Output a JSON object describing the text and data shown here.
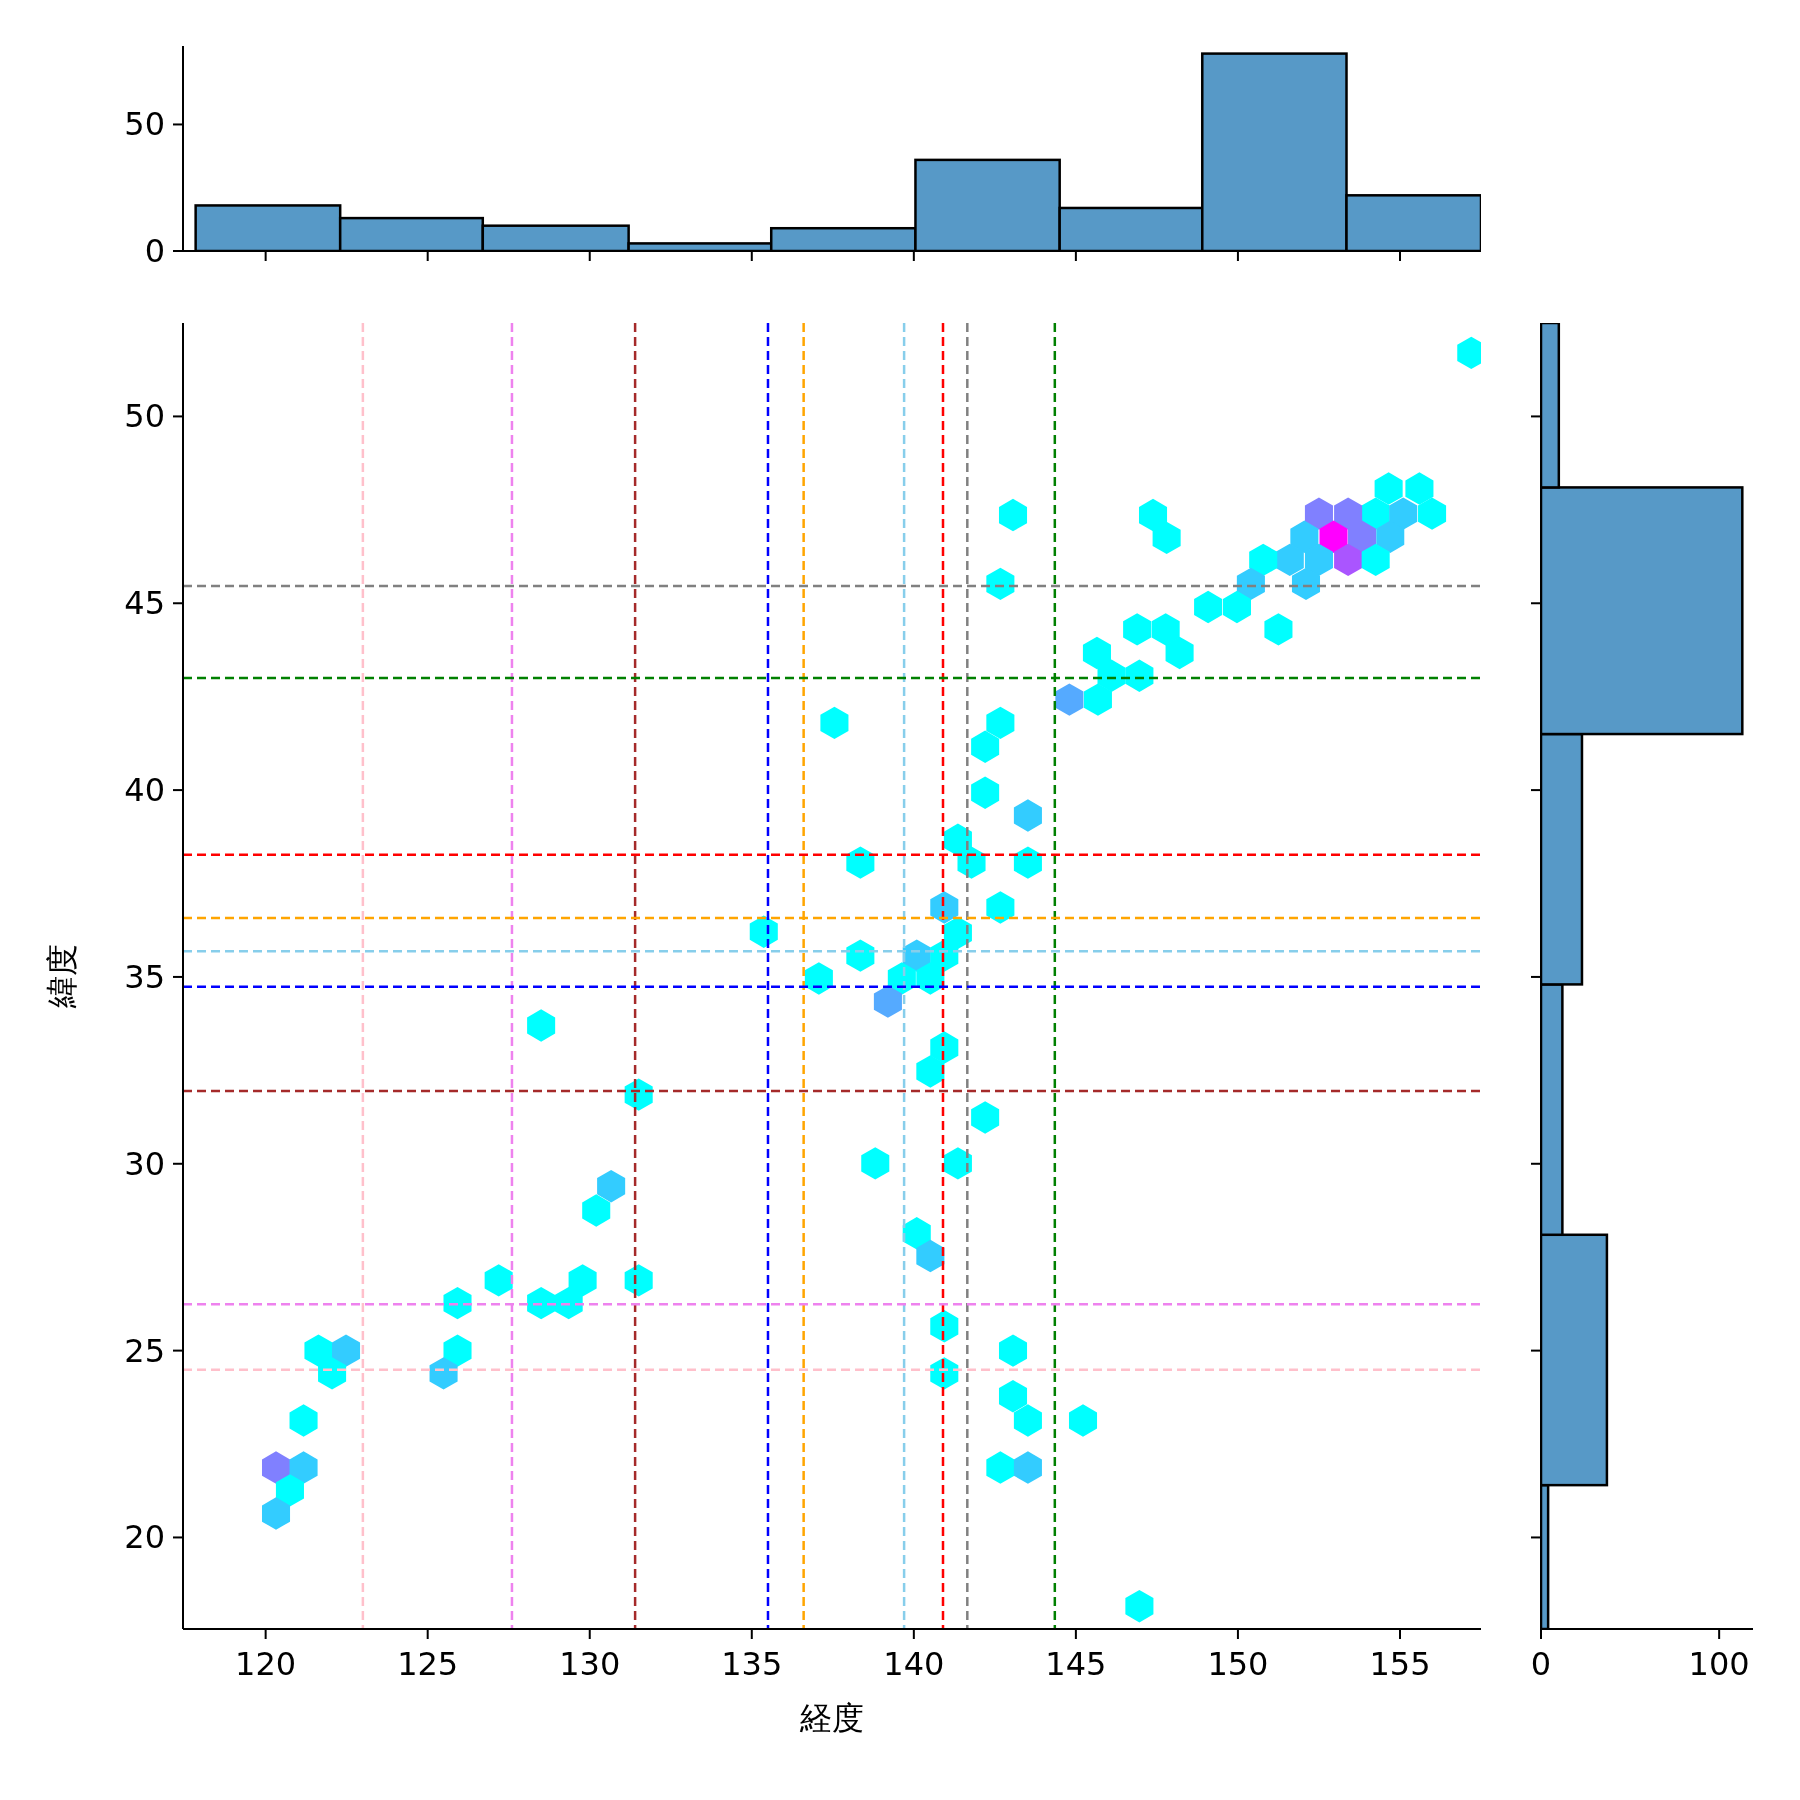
{
  "chart_data": [
    {
      "type": "histogram",
      "bins": [
        117.84,
        122.3,
        126.7,
        131.2,
        135.6,
        140.05,
        144.5,
        148.9,
        153.35,
        157.5
      ],
      "values": [
        18,
        13,
        10,
        3,
        9,
        36,
        17,
        78,
        22
      ],
      "color": "#5799c7",
      "xlim": [
        117.45,
        157.5
      ],
      "xticks": [
        120,
        125,
        130,
        135,
        140,
        145,
        150,
        155
      ],
      "ylim": [
        0,
        81
      ],
      "yticks": [
        0,
        50
      ],
      "tick_labels": "y"
    },
    {
      "type": "scatter",
      "xlabel": "経度",
      "ylabel": "緯度",
      "xlim": [
        117.45,
        157.5
      ],
      "ylim": [
        17.55,
        52.5
      ],
      "xticks": [
        120,
        125,
        130,
        135,
        140,
        145,
        150,
        155
      ],
      "yticks": [
        20,
        25,
        30,
        35,
        40,
        45,
        50
      ],
      "x": [
        157.2,
        154.65,
        155.6,
        155.99,
        154.25,
        155.1,
        152.5,
        153.4,
        152.05,
        152.95,
        153.83,
        154.7,
        151.6,
        152.5,
        153.4,
        154.25,
        150.78,
        150.4,
        152.1,
        149.08,
        149.97,
        151.25,
        146.89,
        147.77,
        148.2,
        145.65,
        146.1,
        146.96,
        144.8,
        145.68,
        147.38,
        147.8,
        143.06,
        142.67,
        142.67,
        142.2,
        142.2,
        143.52,
        137.55,
        141.36,
        141.78,
        143.52,
        138.35,
        142.67,
        140.94,
        141.36,
        135.37,
        138.35,
        140.09,
        140.94,
        140.51,
        139.63,
        137.07,
        139.2,
        140.94,
        140.51,
        131.51,
        142.2,
        128.5,
        138.81,
        141.36,
        130.66,
        130.2,
        140.09,
        140.51,
        127.19,
        129.78,
        131.51,
        125.92,
        128.5,
        129.35,
        125.92,
        125.49,
        121.63,
        122.48,
        122.05,
        140.94,
        143.06,
        140.94,
        121.17,
        143.06,
        143.52,
        145.22,
        120.32,
        121.17,
        142.67,
        143.52,
        120.75,
        120.32,
        146.96
      ],
      "values": [
        51.7,
        48.07,
        48.07,
        47.4,
        47.4,
        47.4,
        47.4,
        47.4,
        46.78,
        46.78,
        46.78,
        46.78,
        46.16,
        46.16,
        46.16,
        46.16,
        46.16,
        45.52,
        45.52,
        44.9,
        44.9,
        44.3,
        44.3,
        44.3,
        43.67,
        43.67,
        43.06,
        43.06,
        42.42,
        42.42,
        47.36,
        46.75,
        47.36,
        45.52,
        41.8,
        41.16,
        39.93,
        39.32,
        41.8,
        38.67,
        38.06,
        38.06,
        38.06,
        36.86,
        36.86,
        36.18,
        36.21,
        35.57,
        35.57,
        35.57,
        34.96,
        34.96,
        34.96,
        34.34,
        33.11,
        32.47,
        31.85,
        31.24,
        33.7,
        30.01,
        30.01,
        29.4,
        28.75,
        28.14,
        27.53,
        26.88,
        26.88,
        26.88,
        26.27,
        26.27,
        26.27,
        25.0,
        24.39,
        25.0,
        25.0,
        24.39,
        25.65,
        25.0,
        24.39,
        23.13,
        23.78,
        23.13,
        23.13,
        21.87,
        21.87,
        21.87,
        21.87,
        21.26,
        20.64,
        18.16
      ],
      "colors": [
        "#00ffff",
        "#00ffff",
        "#00ffff",
        "#00ffff",
        "#00ffff",
        "#33ccff",
        "#8080ff",
        "#8080ff",
        "#33ccff",
        "#ff00ff",
        "#8080ff",
        "#33ccff",
        "#33ccff",
        "#33ccff",
        "#aa55ff",
        "#00ffff",
        "#00ffff",
        "#33ccff",
        "#33ccff",
        "#00ffff",
        "#00ffff",
        "#00ffff",
        "#00ffff",
        "#00ffff",
        "#00ffff",
        "#00ffff",
        "#00ffff",
        "#00ffff",
        "#55aaff",
        "#00ffff",
        "#00ffff",
        "#00ffff",
        "#00ffff",
        "#00ffff",
        "#00ffff",
        "#00ffff",
        "#00ffff",
        "#33ccff",
        "#00ffff",
        "#00ffff",
        "#00ffff",
        "#00ffff",
        "#00ffff",
        "#00ffff",
        "#33ccff",
        "#00ffff",
        "#00ffff",
        "#00ffff",
        "#33ccff",
        "#00ffff",
        "#00ffff",
        "#00ffff",
        "#00ffff",
        "#55aaff",
        "#00ffff",
        "#00ffff",
        "#00ffff",
        "#00ffff",
        "#00ffff",
        "#00ffff",
        "#00ffff",
        "#33ccff",
        "#00ffff",
        "#00ffff",
        "#33ccff",
        "#00ffff",
        "#00ffff",
        "#00ffff",
        "#00ffff",
        "#00ffff",
        "#00ffff",
        "#00ffff",
        "#33ccff",
        "#00ffff",
        "#33ccff",
        "#00ffff",
        "#00ffff",
        "#00ffff",
        "#00ffff",
        "#00ffff",
        "#00ffff",
        "#00ffff",
        "#00ffff",
        "#8080ff",
        "#33ccff",
        "#00ffff",
        "#33ccff",
        "#00ffff",
        "#33ccff",
        "#00ffff"
      ],
      "ref_lines": [
        {
          "axis": "x",
          "value": 123.0,
          "color": "#ffc0cb",
          "line_style": "dashed"
        },
        {
          "axis": "x",
          "value": 127.6,
          "color": "#ee82ee",
          "line_style": "dashed"
        },
        {
          "axis": "x",
          "value": 131.4,
          "color": "#a52a2a",
          "line_style": "dashed"
        },
        {
          "axis": "x",
          "value": 135.5,
          "color": "#0000ff",
          "line_style": "dashed"
        },
        {
          "axis": "x",
          "value": 136.6,
          "color": "#ffa500",
          "line_style": "dashed"
        },
        {
          "axis": "x",
          "value": 139.7,
          "color": "#87ceeb",
          "line_style": "dashed"
        },
        {
          "axis": "x",
          "value": 140.9,
          "color": "#ff0000",
          "line_style": "dashed"
        },
        {
          "axis": "x",
          "value": 141.65,
          "color": "#808080",
          "line_style": "dashed"
        },
        {
          "axis": "x",
          "value": 144.35,
          "color": "#008000",
          "line_style": "dashed"
        },
        {
          "axis": "y",
          "value": 45.46,
          "color": "#808080",
          "line_style": "dashed"
        },
        {
          "axis": "y",
          "value": 43.0,
          "color": "#008000",
          "line_style": "dashed"
        },
        {
          "axis": "y",
          "value": 38.27,
          "color": "#ff0000",
          "line_style": "dashed"
        },
        {
          "axis": "y",
          "value": 36.58,
          "color": "#ffa500",
          "line_style": "dashed"
        },
        {
          "axis": "y",
          "value": 35.69,
          "color": "#87ceeb",
          "line_style": "dashed"
        },
        {
          "axis": "y",
          "value": 34.74,
          "color": "#0000ff",
          "line_style": "dashed"
        },
        {
          "axis": "y",
          "value": 31.95,
          "color": "#a52a2a",
          "line_style": "dashed"
        },
        {
          "axis": "y",
          "value": 26.24,
          "color": "#ee82ee",
          "line_style": "dashed"
        },
        {
          "axis": "y",
          "value": 24.49,
          "color": "#ffc0cb",
          "line_style": "dashed"
        }
      ]
    },
    {
      "type": "histogram",
      "orientation": "horizontal",
      "bins": [
        17.55,
        21.4,
        28.1,
        34.8,
        41.5,
        48.1,
        52.5
      ],
      "values": [
        4,
        37,
        12,
        23,
        113,
        10
      ],
      "color": "#5799c7",
      "ylim": [
        17.55,
        52.5
      ],
      "yticks": [
        20,
        25,
        30,
        35,
        40,
        45,
        50
      ],
      "xlim": [
        0,
        119
      ],
      "xticks": [
        0,
        100
      ],
      "tick_labels": "x"
    }
  ]
}
